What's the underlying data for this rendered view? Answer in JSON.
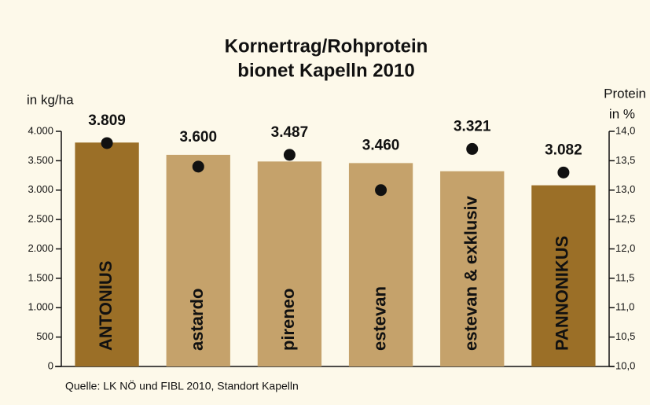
{
  "chart_data": {
    "type": "bar",
    "title": [
      "Kornertrag/Rohprotein",
      "bionet Kapelln 2010"
    ],
    "ylabel": "in kg/ha",
    "y2label": [
      "Protein",
      "in %"
    ],
    "source": "Quelle: LK NÖ und FIBL 2010, Standort Kapelln",
    "categories": [
      "ANTONIUS",
      "astardo",
      "pireneo",
      "estevan",
      "estevan & exklusiv",
      "PANNONIKUS"
    ],
    "series": [
      {
        "values": [
          3809,
          3600,
          3487,
          3460,
          3321,
          3082
        ],
        "value_labels": [
          "3.809",
          "3.600",
          "3.487",
          "3.460",
          "3.321",
          "3.082"
        ],
        "colors": [
          "#9b6f27",
          "#c5a26b",
          "#c5a26b",
          "#c5a26b",
          "#c5a26b",
          "#9b6f27"
        ]
      },
      {
        "values": [
          13.8,
          13.4,
          13.6,
          13.0,
          13.7,
          13.3
        ],
        "axis": "y2",
        "color": "#111111"
      }
    ],
    "ylim": [
      0,
      4000
    ],
    "yticks": [
      0,
      500,
      {
        "value": 1000,
        "label": "1.000"
      },
      {
        "value": 1500,
        "label": "1.500"
      },
      {
        "value": 2000,
        "label": "2.000"
      },
      {
        "value": 2500,
        "label": "2.500"
      },
      {
        "value": 3000,
        "label": "3.000"
      },
      {
        "value": 3500,
        "label": "3.500"
      },
      {
        "value": 4000,
        "label": "4.000"
      }
    ],
    "y2lim": [
      10,
      14
    ],
    "y2ticks": [
      {
        "value": 10,
        "label": "10,0"
      },
      {
        "value": 10.5,
        "label": "10,5"
      },
      {
        "value": 11,
        "label": "11,0"
      },
      {
        "value": 11.5,
        "label": "11,5"
      },
      {
        "value": 12,
        "label": "12,0"
      },
      {
        "value": 12.5,
        "label": "12,5"
      },
      {
        "value": 13,
        "label": "13,0"
      },
      {
        "value": 13.5,
        "label": "13,5"
      },
      {
        "value": 14,
        "label": "14,0"
      }
    ]
  }
}
